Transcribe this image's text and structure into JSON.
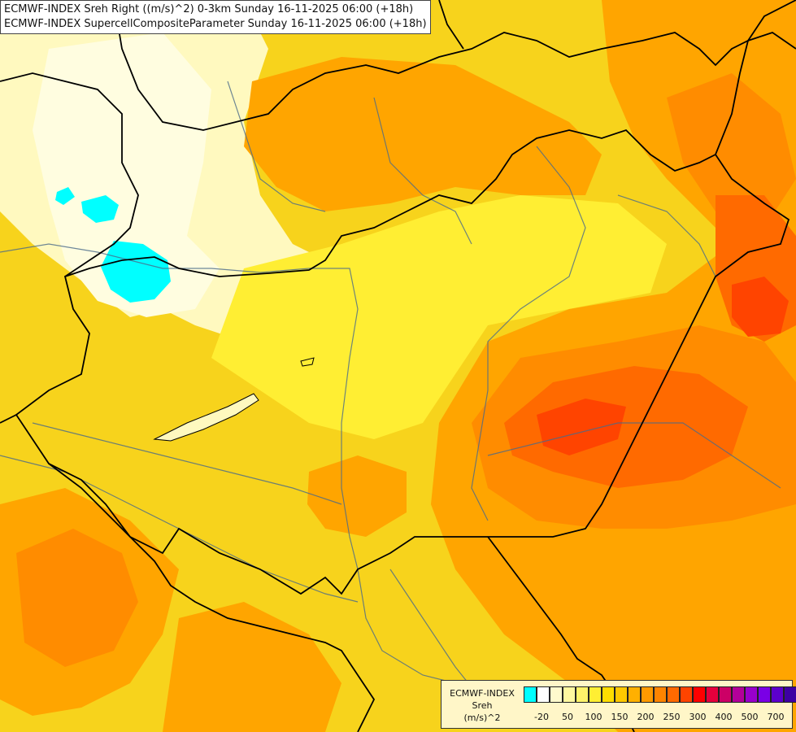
{
  "titles": {
    "line1": "ECMWF-INDEX Sreh Right ((m/s)^2) 0-3km Sunday 16-11-2025 06:00 (+18h)",
    "line2": "ECMWF-INDEX SupercellCompositeParameter Sunday 16-11-2025 06:00 (+18h)"
  },
  "legend": {
    "title1": "ECMWF-INDEX",
    "title2": "Sreh",
    "title3": "(m/s)^2",
    "colors": [
      "#00ffff",
      "#ffffff",
      "#fffacd",
      "#fff8a0",
      "#fff36a",
      "#ffee33",
      "#ffdd00",
      "#ffc800",
      "#ffb000",
      "#ff9a00",
      "#ff8400",
      "#ff6a00",
      "#ff4400",
      "#ff0000",
      "#e6003c",
      "#cc0066",
      "#b30099",
      "#9900cc",
      "#7a00e6",
      "#5c00cc",
      "#3d00a3",
      "#1f007a"
    ],
    "ticks": [
      "-20",
      "50",
      "100",
      "150",
      "200",
      "250",
      "300",
      "400",
      "500",
      "700"
    ]
  },
  "map_colors": {
    "base": "#f7d31c",
    "pale": "#fff9bf",
    "cream": "#fffde0",
    "yellow": "#ffee33",
    "gold": "#ffc800",
    "orange": "#ffa500",
    "deep_orange": "#ff8c00",
    "red_orange": "#ff6a00",
    "red": "#ff4400",
    "cyan": "#00ffff",
    "border": "#000000",
    "river": "#4a6a8a"
  }
}
